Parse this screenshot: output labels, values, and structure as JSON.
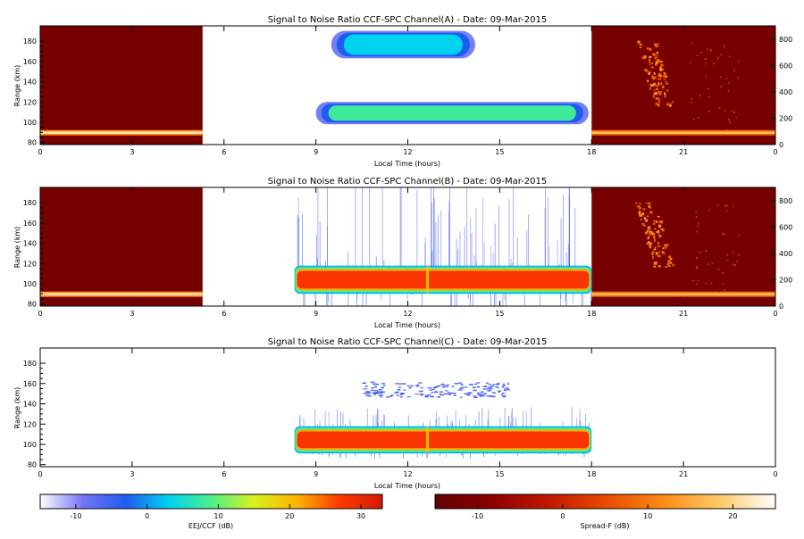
{
  "panels": [
    {
      "title": "Signal to Noise Ratio CCF-SPC Channel(A) - Date: 09-Mar-2015",
      "xlabel": "Local Time (hours)",
      "ylabel": "Range (km)",
      "x_ticks": [
        "0",
        "3",
        "6",
        "9",
        "12",
        "15",
        "18",
        "21",
        "0"
      ],
      "y_ticks": [
        "80",
        "100",
        "120",
        "140",
        "160",
        "180"
      ],
      "right_ticks": [
        "0",
        "200",
        "400",
        "600",
        "800"
      ]
    },
    {
      "title": "Signal to Noise Ratio CCF-SPC Channel(B) - Date: 09-Mar-2015",
      "xlabel": "Local Time (hours)",
      "ylabel": "Range (km)",
      "x_ticks": [
        "0",
        "3",
        "6",
        "9",
        "12",
        "15",
        "18",
        "21",
        "0"
      ],
      "y_ticks": [
        "80",
        "100",
        "120",
        "140",
        "160",
        "180"
      ],
      "right_ticks": [
        "0",
        "200",
        "400",
        "600",
        "800"
      ]
    },
    {
      "title": "Signal to Noise Ratio CCF-SPC Channel(C) - Date: 09-Mar-2015",
      "xlabel": "Local Time (hours)",
      "ylabel": "Range (km)",
      "x_ticks": [
        "0",
        "3",
        "6",
        "9",
        "12",
        "15",
        "18",
        "21",
        "0"
      ],
      "y_ticks": [
        "80",
        "100",
        "120",
        "140",
        "160",
        "180"
      ]
    }
  ],
  "colorbars": [
    {
      "label": "EEJ/CCF (dB)",
      "ticks": [
        "-10",
        "0",
        "10",
        "20",
        "30"
      ],
      "range": [
        -15,
        33
      ]
    },
    {
      "label": "Spread-F (dB)",
      "ticks": [
        "-10",
        "0",
        "10",
        "20"
      ],
      "range": [
        -15,
        25
      ]
    }
  ],
  "chart_data": [
    {
      "type": "heatmap",
      "title": "Signal to Noise Ratio CCF-SPC Channel(A) - Date: 09-Mar-2015",
      "xlabel": "Local Time (hours)",
      "ylabel": "Range (km)",
      "xlim": [
        0,
        24
      ],
      "ylim": [
        78,
        195
      ],
      "right_ylim": [
        0,
        900
      ],
      "eej_window_hours": [
        8.3,
        18
      ],
      "spreadf_windows_hours": [
        [
          0,
          5.3
        ],
        [
          18,
          24
        ]
      ],
      "features": [
        {
          "name": "upper echo",
          "t_start": 9.5,
          "t_end": 14.2,
          "range_km": [
            163,
            190
          ],
          "snr_db": 3
        },
        {
          "name": "lower echo",
          "t_start": 9.0,
          "t_end": 17.9,
          "range_km": [
            98,
            120
          ],
          "snr_db": 8
        },
        {
          "name": "night layer (left)",
          "t_start": 0,
          "t_end": 5.3,
          "right_axis_km": 90,
          "snr_db": 22
        },
        {
          "name": "night layer (right)",
          "t_start": 18,
          "t_end": 24,
          "right_axis_km": 90,
          "snr_db": 18
        },
        {
          "name": "spread-F plume",
          "t_start": 19.5,
          "t_end": 20.6,
          "right_axis_km": [
            300,
            790
          ],
          "snr_db": 12
        }
      ]
    },
    {
      "type": "heatmap",
      "title": "Signal to Noise Ratio CCF-SPC Channel(B) - Date: 09-Mar-2015",
      "xlabel": "Local Time (hours)",
      "ylabel": "Range (km)",
      "xlim": [
        0,
        24
      ],
      "ylim": [
        78,
        195
      ],
      "right_ylim": [
        0,
        900
      ],
      "eej_window_hours": [
        8.3,
        18
      ],
      "spreadf_windows_hours": [
        [
          0,
          5.3
        ],
        [
          18,
          24
        ]
      ],
      "features": [
        {
          "name": "EEJ band",
          "t_start": 8.3,
          "t_end": 18,
          "range_km": [
            91,
            117
          ],
          "snr_db": 28
        },
        {
          "name": "night layer (left)",
          "t_start": 0,
          "t_end": 5.3,
          "right_axis_km": 90,
          "snr_db": 22
        },
        {
          "name": "night layer (right)",
          "t_start": 18,
          "t_end": 24,
          "right_axis_km": 90,
          "snr_db": 18
        },
        {
          "name": "spread-F plume",
          "t_start": 19.5,
          "t_end": 20.6,
          "right_axis_km": [
            300,
            790
          ],
          "snr_db": 12
        }
      ]
    },
    {
      "type": "heatmap",
      "title": "Signal to Noise Ratio CCF-SPC Channel(C) - Date: 09-Mar-2015",
      "xlabel": "Local Time (hours)",
      "ylabel": "Range (km)",
      "xlim": [
        0,
        24
      ],
      "ylim": [
        78,
        195
      ],
      "eej_window_hours": [
        8.3,
        18
      ],
      "features": [
        {
          "name": "EEJ band",
          "t_start": 8.3,
          "t_end": 18,
          "range_km": [
            92,
            117
          ],
          "snr_db": 28
        },
        {
          "name": "upper scatter",
          "t_start": 10.5,
          "t_end": 15.3,
          "range_km": [
            147,
            162
          ],
          "snr_db": -5
        }
      ]
    }
  ],
  "colors": {
    "eej_scale": [
      "#ffffff",
      "#7575f5",
      "#1f5cf0",
      "#00d2f0",
      "#4cf08a",
      "#d9f01c",
      "#ffb300",
      "#ff3a00",
      "#d41a00"
    ],
    "spreadf_scale": [
      "#640000",
      "#8c0000",
      "#c21800",
      "#e84a00",
      "#ff8a14",
      "#ffc866",
      "#ffffff"
    ]
  }
}
